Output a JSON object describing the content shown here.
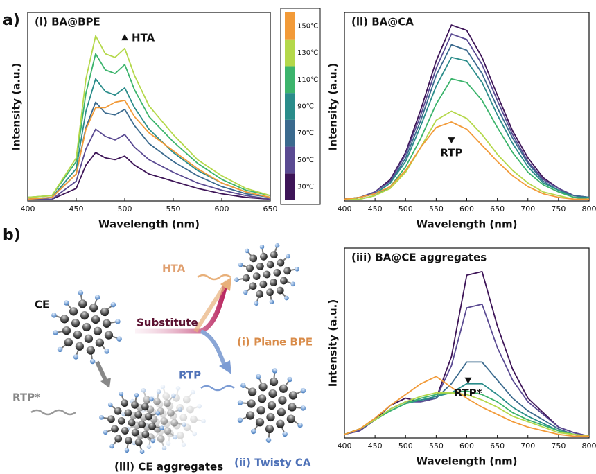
{
  "panel_labels": [
    "a)",
    "b)"
  ],
  "diagram": {
    "ce": "CE",
    "substitute": "Substitute",
    "hta": "HTA",
    "plane_bpe": "(i) Plane BPE",
    "rtp": "RTP",
    "twisty_ca": "(ii) Twisty CA",
    "rtp_star": "RTP*",
    "ce_aggregates": "(iii) CE aggregates"
  },
  "chart_data": [
    {
      "type": "line",
      "title": "(i) BA@BPE",
      "x_label": "Wavelength (nm)",
      "y_label": "Intensity (a.u.)",
      "annotation": "HTA",
      "x": [
        400,
        425,
        450,
        460,
        470,
        480,
        490,
        500,
        510,
        525,
        550,
        575,
        600,
        625,
        650
      ],
      "xlim": [
        400,
        650
      ],
      "xticks": [
        400,
        450,
        500,
        550,
        600,
        650
      ],
      "ylim": [
        0,
        1.05
      ],
      "series": [
        {
          "name": "30℃",
          "color": "#3d1457",
          "values": [
            0.01,
            0.01,
            0.07,
            0.2,
            0.27,
            0.24,
            0.23,
            0.25,
            0.2,
            0.15,
            0.11,
            0.07,
            0.04,
            0.02,
            0.01
          ]
        },
        {
          "name": "50℃",
          "color": "#5a4a92",
          "values": [
            0.01,
            0.01,
            0.11,
            0.29,
            0.4,
            0.36,
            0.34,
            0.37,
            0.3,
            0.23,
            0.16,
            0.1,
            0.06,
            0.03,
            0.01
          ]
        },
        {
          "name": "70℃",
          "color": "#3b6a8e",
          "values": [
            0.01,
            0.02,
            0.15,
            0.41,
            0.55,
            0.49,
            0.48,
            0.51,
            0.42,
            0.32,
            0.22,
            0.14,
            0.08,
            0.04,
            0.02
          ]
        },
        {
          "name": "90℃",
          "color": "#2a8c8a",
          "values": [
            0.01,
            0.02,
            0.18,
            0.5,
            0.68,
            0.61,
            0.59,
            0.63,
            0.52,
            0.4,
            0.27,
            0.17,
            0.1,
            0.05,
            0.02
          ]
        },
        {
          "name": "110℃",
          "color": "#3cb46c",
          "values": [
            0.02,
            0.03,
            0.22,
            0.6,
            0.82,
            0.73,
            0.71,
            0.76,
            0.62,
            0.47,
            0.33,
            0.21,
            0.12,
            0.06,
            0.03
          ]
        },
        {
          "name": "130℃",
          "color": "#b4d84a",
          "values": [
            0.02,
            0.03,
            0.24,
            0.68,
            0.92,
            0.82,
            0.8,
            0.85,
            0.7,
            0.53,
            0.37,
            0.23,
            0.14,
            0.07,
            0.03
          ]
        },
        {
          "name": "150℃",
          "color": "#f29a38",
          "values": [
            0.01,
            0.02,
            0.15,
            0.4,
            0.52,
            0.52,
            0.55,
            0.56,
            0.47,
            0.38,
            0.28,
            0.18,
            0.1,
            0.05,
            0.02
          ]
        }
      ]
    },
    {
      "type": "line",
      "title": "(ii) BA@CA",
      "x_label": "Wavelength (nm)",
      "y_label": "Intensity (a.u.)",
      "annotation": "RTP",
      "x": [
        400,
        425,
        450,
        475,
        500,
        525,
        550,
        575,
        600,
        625,
        650,
        675,
        700,
        725,
        750,
        775,
        800
      ],
      "xlim": [
        400,
        800
      ],
      "xticks": [
        400,
        450,
        500,
        550,
        600,
        650,
        700,
        750,
        800
      ],
      "ylim": [
        0,
        1.05
      ],
      "series": [
        {
          "color": "#3d1457",
          "values": [
            0.01,
            0.02,
            0.05,
            0.12,
            0.27,
            0.51,
            0.78,
            0.98,
            0.95,
            0.8,
            0.59,
            0.39,
            0.24,
            0.13,
            0.07,
            0.03,
            0.02
          ]
        },
        {
          "color": "#5a4a92",
          "values": [
            0.01,
            0.02,
            0.05,
            0.11,
            0.26,
            0.48,
            0.74,
            0.93,
            0.9,
            0.76,
            0.56,
            0.37,
            0.22,
            0.12,
            0.07,
            0.03,
            0.02
          ]
        },
        {
          "color": "#3b6a8e",
          "values": [
            0.01,
            0.02,
            0.04,
            0.1,
            0.24,
            0.45,
            0.7,
            0.87,
            0.84,
            0.71,
            0.52,
            0.35,
            0.21,
            0.11,
            0.06,
            0.03,
            0.02
          ]
        },
        {
          "color": "#2a8c8a",
          "values": [
            0.01,
            0.02,
            0.04,
            0.1,
            0.22,
            0.42,
            0.64,
            0.8,
            0.78,
            0.66,
            0.48,
            0.32,
            0.19,
            0.1,
            0.06,
            0.02,
            0.02
          ]
        },
        {
          "color": "#3cb46c",
          "values": [
            0.01,
            0.01,
            0.03,
            0.08,
            0.19,
            0.35,
            0.54,
            0.68,
            0.66,
            0.56,
            0.41,
            0.27,
            0.16,
            0.09,
            0.05,
            0.02,
            0.01
          ]
        },
        {
          "color": "#b4d84a",
          "values": [
            0.01,
            0.01,
            0.03,
            0.07,
            0.16,
            0.3,
            0.45,
            0.5,
            0.46,
            0.37,
            0.26,
            0.17,
            0.1,
            0.05,
            0.03,
            0.01,
            0.01
          ]
        },
        {
          "color": "#f29a38",
          "values": [
            0.01,
            0.02,
            0.04,
            0.08,
            0.17,
            0.3,
            0.41,
            0.44,
            0.4,
            0.31,
            0.22,
            0.14,
            0.08,
            0.04,
            0.02,
            0.01,
            0.01
          ]
        }
      ]
    },
    {
      "type": "line",
      "title": "(iii) BA@CE aggregates",
      "x_label": "Wavelength (nm)",
      "y_label": "Intensity (a.u.)",
      "annotation": "RTP*",
      "x": [
        400,
        425,
        450,
        475,
        500,
        525,
        550,
        575,
        600,
        625,
        650,
        675,
        700,
        725,
        750,
        775,
        800
      ],
      "xlim": [
        400,
        800
      ],
      "xticks": [
        400,
        450,
        500,
        550,
        600,
        650,
        700,
        750,
        800
      ],
      "ylim": [
        0,
        1.05
      ],
      "series": [
        {
          "color": "#3d1457",
          "values": [
            0.02,
            0.04,
            0.1,
            0.18,
            0.22,
            0.2,
            0.22,
            0.45,
            0.9,
            0.92,
            0.62,
            0.38,
            0.22,
            0.14,
            0.06,
            0.03,
            0.01
          ]
        },
        {
          "color": "#5a4a92",
          "values": [
            0.02,
            0.04,
            0.1,
            0.16,
            0.2,
            0.2,
            0.22,
            0.4,
            0.72,
            0.74,
            0.5,
            0.32,
            0.2,
            0.13,
            0.06,
            0.03,
            0.01
          ]
        },
        {
          "color": "#3b6a8e",
          "values": [
            0.02,
            0.05,
            0.1,
            0.16,
            0.2,
            0.21,
            0.22,
            0.3,
            0.42,
            0.42,
            0.32,
            0.22,
            0.15,
            0.1,
            0.05,
            0.02,
            0.01
          ]
        },
        {
          "color": "#2a8c8a",
          "values": [
            0.02,
            0.05,
            0.1,
            0.15,
            0.19,
            0.21,
            0.23,
            0.25,
            0.3,
            0.3,
            0.24,
            0.17,
            0.12,
            0.08,
            0.04,
            0.02,
            0.01
          ]
        },
        {
          "color": "#3cb46c",
          "values": [
            0.02,
            0.05,
            0.1,
            0.15,
            0.19,
            0.22,
            0.24,
            0.25,
            0.26,
            0.24,
            0.2,
            0.14,
            0.1,
            0.07,
            0.04,
            0.02,
            0.01
          ]
        },
        {
          "color": "#b4d84a",
          "values": [
            0.02,
            0.05,
            0.1,
            0.16,
            0.2,
            0.23,
            0.25,
            0.25,
            0.24,
            0.21,
            0.17,
            0.12,
            0.09,
            0.06,
            0.03,
            0.02,
            0.01
          ]
        },
        {
          "color": "#f29a38",
          "values": [
            0.02,
            0.05,
            0.11,
            0.18,
            0.24,
            0.3,
            0.34,
            0.28,
            0.22,
            0.17,
            0.13,
            0.09,
            0.06,
            0.04,
            0.02,
            0.01,
            0.01
          ]
        }
      ]
    }
  ]
}
